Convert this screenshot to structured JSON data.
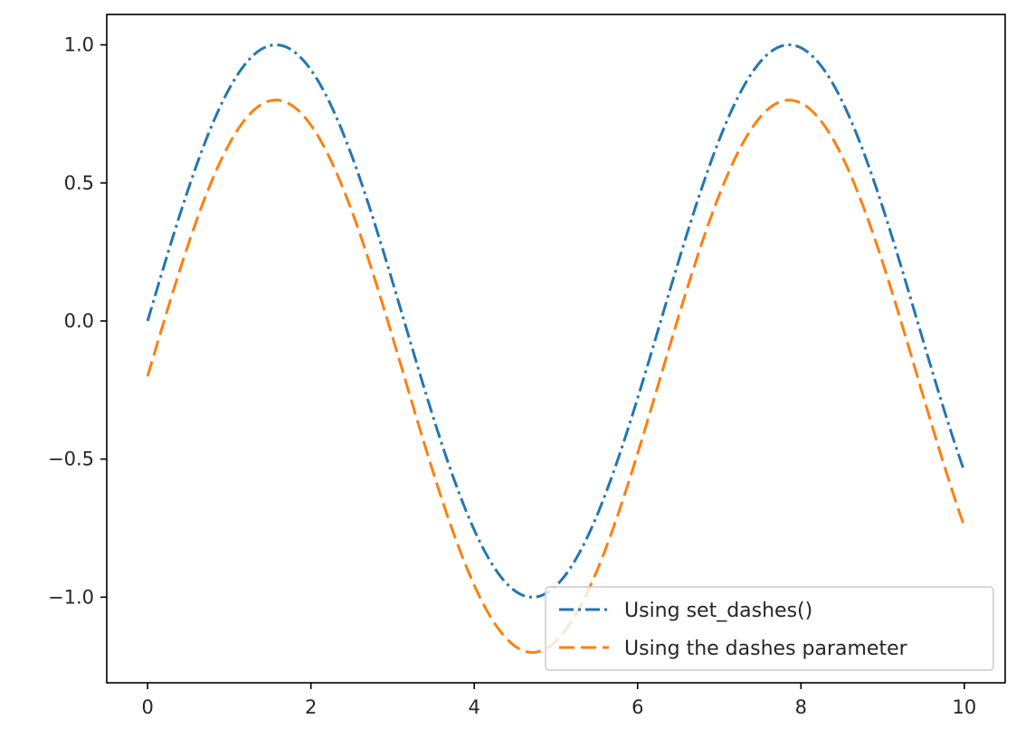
{
  "chart_data": {
    "type": "line",
    "title": "",
    "xlabel": "",
    "ylabel": "",
    "xlim": [
      -0.5,
      10.5
    ],
    "ylim": [
      -1.31,
      1.11
    ],
    "grid": false,
    "legend_position": "lower-right",
    "x_ticks": [
      0,
      2,
      4,
      6,
      8,
      10
    ],
    "x_tick_labels": [
      "0",
      "2",
      "4",
      "6",
      "8",
      "10"
    ],
    "y_ticks": [
      -1.0,
      -0.5,
      0.0,
      0.5,
      1.0
    ],
    "y_tick_labels": [
      "−1.0",
      "−0.5",
      "0.0",
      "0.5",
      "1.0"
    ],
    "series": [
      {
        "name": "Using set_dashes()",
        "color": "#1f77b4",
        "dash": "dash-dot",
        "function": "sin(x)",
        "x_range": [
          0,
          10
        ],
        "samples": 500
      },
      {
        "name": "Using the dashes parameter",
        "color": "#ff7f0e",
        "dash": "dashed",
        "function": "sin(x) - 0.2",
        "x_range": [
          0,
          10
        ],
        "samples": 500
      }
    ]
  }
}
